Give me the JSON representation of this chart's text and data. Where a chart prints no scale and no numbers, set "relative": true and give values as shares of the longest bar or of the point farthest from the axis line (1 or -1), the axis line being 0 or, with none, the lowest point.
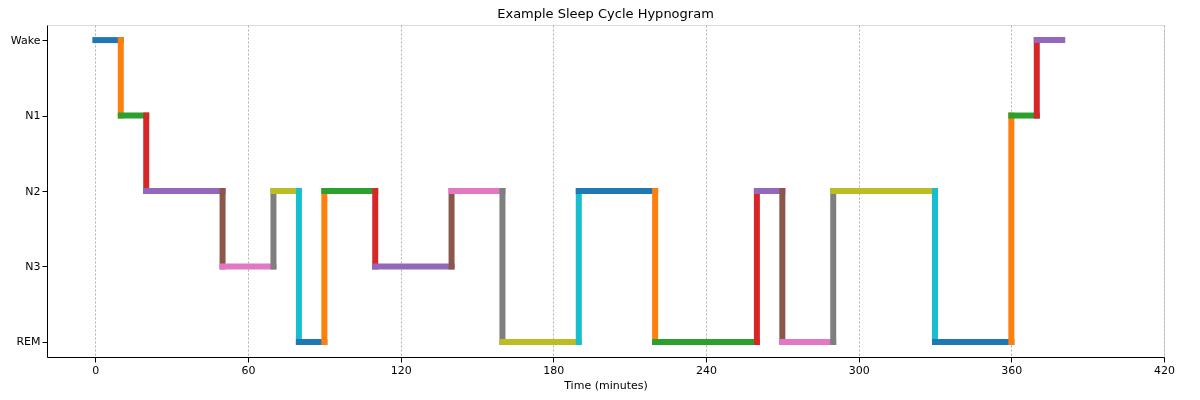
{
  "chart_data": {
    "type": "line",
    "title": "Example Sleep Cycle Hypnogram",
    "xlabel": "Time (minutes)",
    "xlim": [
      -19,
      420
    ],
    "xticks": [
      0,
      60,
      120,
      180,
      240,
      300,
      360,
      420
    ],
    "relative": true,
    "annotations": [
      "REM",
      "N3",
      "N2",
      "N1",
      "Wake"
    ],
    "grid": "x",
    "legend": false,
    "marker": "none",
    "line_style": "solid",
    "series": [
      {
        "x": [
          0,
          10
        ],
        "values": [
          1,
          1
        ],
        "color": "#1f77b4"
      },
      {
        "x": [
          10,
          10
        ],
        "values": [
          1,
          0.75
        ],
        "color": "#ff7f0e"
      },
      {
        "x": [
          10,
          20
        ],
        "values": [
          0.75,
          0.75
        ],
        "color": "#2ca02c"
      },
      {
        "x": [
          20,
          20
        ],
        "values": [
          0.75,
          0.5
        ],
        "color": "#d62728"
      },
      {
        "x": [
          20,
          50
        ],
        "values": [
          0.5,
          0.5
        ],
        "color": "#9467bd"
      },
      {
        "x": [
          50,
          50
        ],
        "values": [
          0.5,
          0.25
        ],
        "color": "#8c564b"
      },
      {
        "x": [
          50,
          70
        ],
        "values": [
          0.25,
          0.25
        ],
        "color": "#e377c2"
      },
      {
        "x": [
          70,
          70
        ],
        "values": [
          0.25,
          0.5
        ],
        "color": "#7f7f7f"
      },
      {
        "x": [
          70,
          80
        ],
        "values": [
          0.5,
          0.5
        ],
        "color": "#bcbd22"
      },
      {
        "x": [
          80,
          80
        ],
        "values": [
          0.5,
          0
        ],
        "color": "#17becf"
      },
      {
        "x": [
          80,
          90
        ],
        "values": [
          0,
          0
        ],
        "color": "#1f77b4"
      },
      {
        "x": [
          90,
          90
        ],
        "values": [
          0,
          0.5
        ],
        "color": "#ff7f0e"
      },
      {
        "x": [
          90,
          110
        ],
        "values": [
          0.5,
          0.5
        ],
        "color": "#2ca02c"
      },
      {
        "x": [
          110,
          110
        ],
        "values": [
          0.5,
          0.25
        ],
        "color": "#d62728"
      },
      {
        "x": [
          110,
          140
        ],
        "values": [
          0.25,
          0.25
        ],
        "color": "#9467bd"
      },
      {
        "x": [
          140,
          140
        ],
        "values": [
          0.25,
          0.5
        ],
        "color": "#8c564b"
      },
      {
        "x": [
          140,
          160
        ],
        "values": [
          0.5,
          0.5
        ],
        "color": "#e377c2"
      },
      {
        "x": [
          160,
          160
        ],
        "values": [
          0.5,
          0
        ],
        "color": "#7f7f7f"
      },
      {
        "x": [
          160,
          190
        ],
        "values": [
          0,
          0
        ],
        "color": "#bcbd22"
      },
      {
        "x": [
          190,
          190
        ],
        "values": [
          0,
          0.5
        ],
        "color": "#17becf"
      },
      {
        "x": [
          190,
          220
        ],
        "values": [
          0.5,
          0.5
        ],
        "color": "#1f77b4"
      },
      {
        "x": [
          220,
          220
        ],
        "values": [
          0.5,
          0
        ],
        "color": "#ff7f0e"
      },
      {
        "x": [
          220,
          260
        ],
        "values": [
          0,
          0
        ],
        "color": "#2ca02c"
      },
      {
        "x": [
          260,
          260
        ],
        "values": [
          0,
          0.5
        ],
        "color": "#d62728"
      },
      {
        "x": [
          260,
          270
        ],
        "values": [
          0.5,
          0.5
        ],
        "color": "#9467bd"
      },
      {
        "x": [
          270,
          270
        ],
        "values": [
          0.5,
          0
        ],
        "color": "#8c564b"
      },
      {
        "x": [
          270,
          290
        ],
        "values": [
          0,
          0
        ],
        "color": "#e377c2"
      },
      {
        "x": [
          290,
          290
        ],
        "values": [
          0,
          0.5
        ],
        "color": "#7f7f7f"
      },
      {
        "x": [
          290,
          330
        ],
        "values": [
          0.5,
          0.5
        ],
        "color": "#bcbd22"
      },
      {
        "x": [
          330,
          330
        ],
        "values": [
          0.5,
          0
        ],
        "color": "#17becf"
      },
      {
        "x": [
          330,
          360
        ],
        "values": [
          0,
          0
        ],
        "color": "#1f77b4"
      },
      {
        "x": [
          360,
          360
        ],
        "values": [
          0,
          0.75
        ],
        "color": "#ff7f0e"
      },
      {
        "x": [
          360,
          370
        ],
        "values": [
          0.75,
          0.75
        ],
        "color": "#2ca02c"
      },
      {
        "x": [
          370,
          370
        ],
        "values": [
          0.75,
          1
        ],
        "color": "#d62728"
      },
      {
        "x": [
          370,
          380
        ],
        "values": [
          1,
          1
        ],
        "color": "#9467bd"
      }
    ]
  }
}
